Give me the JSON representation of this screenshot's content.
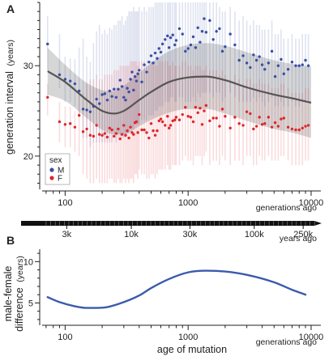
{
  "chart_data": [
    {
      "panel": "A",
      "type": "scatter",
      "ylabel": "generation interval",
      "ylabel_unit": "(years)",
      "xlabel": "",
      "x_note": "generations ago",
      "x_scale": "log",
      "xlim": [
        65,
        12000
      ],
      "ylim": [
        16.5,
        37
      ],
      "x_ticks": [
        100,
        1000,
        10000
      ],
      "x_tick_labels": [
        "100",
        "1000",
        "10000"
      ],
      "y_ticks": [
        20,
        30
      ],
      "y_tick_labels": [
        "20",
        "30"
      ],
      "grid": false,
      "legend": {
        "title": "sex",
        "position": "bottom-left",
        "entries": [
          {
            "label": "M",
            "color": "#3a4fa3"
          },
          {
            "label": "F",
            "color": "#e0262b"
          }
        ]
      },
      "series": [
        {
          "name": "M",
          "color": "#3a4fa3",
          "x": [
            72,
            90,
            100,
            110,
            120,
            130,
            140,
            150,
            160,
            170,
            180,
            190,
            200,
            210,
            220,
            230,
            240,
            250,
            260,
            270,
            280,
            290,
            300,
            310,
            320,
            330,
            340,
            350,
            360,
            370,
            380,
            390,
            400,
            420,
            440,
            460,
            480,
            500,
            520,
            540,
            560,
            580,
            600,
            620,
            650,
            680,
            700,
            720,
            750,
            780,
            800,
            850,
            900,
            950,
            1000,
            1050,
            1100,
            1150,
            1200,
            1250,
            1300,
            1350,
            1400,
            1500,
            1600,
            1700,
            1800,
            1900,
            2000,
            2200,
            2400,
            2600,
            2800,
            3000,
            3200,
            3400,
            3600,
            3800,
            4000,
            4200,
            4500,
            4800,
            5100,
            5400,
            5700,
            6000,
            6500,
            7000,
            7500,
            8000,
            8500,
            9000,
            9500
          ],
          "y": [
            32.4,
            29.0,
            28.5,
            28.3,
            28.0,
            27.2,
            25.2,
            25.1,
            24.9,
            25.5,
            26.3,
            25.8,
            26.8,
            26.9,
            26.2,
            27.2,
            26.6,
            27.4,
            26.5,
            27.4,
            28.4,
            27.7,
            26.5,
            26.2,
            27.5,
            27.1,
            28.5,
            29.3,
            27.3,
            28.8,
            28.3,
            29.1,
            29.5,
            28.2,
            30.1,
            29.3,
            30.4,
            31.1,
            30.3,
            31.4,
            30.8,
            31.9,
            31.5,
            32.4,
            32.9,
            33.3,
            32.0,
            33.1,
            33.4,
            32.3,
            32.8,
            34.1,
            33.5,
            31.6,
            31.9,
            32.3,
            33.2,
            32.0,
            34.2,
            32.6,
            33.8,
            35.2,
            33.7,
            35.0,
            32.9,
            33.8,
            34.1,
            31.6,
            32.1,
            33.5,
            32.3,
            30.6,
            31.1,
            30.3,
            29.8,
            31.2,
            30.6,
            31.0,
            30.1,
            29.6,
            30.3,
            31.6,
            28.8,
            30.0,
            30.7,
            29.1,
            29.6,
            30.4,
            30.0,
            30.0,
            30.1,
            30.6,
            30.0
          ],
          "upper": [
            35.5,
            33.5,
            31.0,
            30.8,
            30.7,
            32.0,
            33.0,
            31.0,
            30.4,
            32.5,
            33.8,
            34.5,
            33.5,
            34.0,
            33.5,
            34.2,
            34.0,
            34.5,
            34.5,
            35.0,
            35.0,
            35.5,
            34.5,
            35.0,
            35.5,
            36.0,
            36.0,
            36.0,
            36.5,
            36.0,
            36.0,
            36.0,
            36.5,
            36.0,
            36.5,
            36.0,
            36.5,
            36.5,
            36.5,
            37.0,
            37.0,
            37.0,
            37.0,
            37.0,
            37.0,
            37.0,
            37.0,
            37.0,
            37.0,
            37.0,
            37.0,
            37.0,
            37.0,
            37.0,
            37.0,
            37.0,
            37.0,
            37.0,
            37.0,
            37.0,
            37.0,
            37.0,
            37.0,
            37.0,
            37.0,
            37.0,
            36.5,
            36.0,
            36.0,
            36.5,
            36.0,
            35.0,
            35.5,
            35.0,
            34.5,
            35.0,
            34.5,
            34.5,
            34.0,
            34.0,
            34.0,
            35.0,
            33.5,
            33.5,
            34.0,
            33.0,
            33.0,
            33.5,
            33.0,
            33.0,
            33.5,
            33.5,
            33.5
          ],
          "lower": [
            29.5,
            27.5,
            26.0,
            26.0,
            25.5,
            24.5,
            22.0,
            22.0,
            21.0,
            21.5,
            21.5,
            21.5,
            21.5,
            21.5,
            21.5,
            21.5,
            21.5,
            22.0,
            21.5,
            22.0,
            22.0,
            22.0,
            22.0,
            22.0,
            22.5,
            22.5,
            23.0,
            23.0,
            23.0,
            23.5,
            23.5,
            23.5,
            23.5,
            24.0,
            24.0,
            24.0,
            24.5,
            24.5,
            24.5,
            25.0,
            25.0,
            25.5,
            25.5,
            25.5,
            26.0,
            26.0,
            26.0,
            26.5,
            26.5,
            26.0,
            26.0,
            26.5,
            26.5,
            26.0,
            26.0,
            26.0,
            26.5,
            26.0,
            27.0,
            26.5,
            27.0,
            27.0,
            27.0,
            27.0,
            26.5,
            27.0,
            27.0,
            26.0,
            26.5,
            27.0,
            26.5,
            26.0,
            26.0,
            26.0,
            26.0,
            26.5,
            26.0,
            26.5,
            26.0,
            25.5,
            26.0,
            26.5,
            25.5,
            25.5,
            26.0,
            25.5,
            25.5,
            26.0,
            25.5,
            25.5,
            26.0,
            26.0,
            26.0
          ]
        },
        {
          "name": "F",
          "color": "#e0262b",
          "x": [
            72,
            90,
            100,
            110,
            120,
            130,
            140,
            150,
            160,
            170,
            180,
            190,
            200,
            210,
            220,
            230,
            240,
            250,
            260,
            270,
            280,
            290,
            300,
            310,
            320,
            330,
            340,
            350,
            360,
            370,
            380,
            390,
            400,
            420,
            440,
            460,
            480,
            500,
            520,
            540,
            560,
            580,
            600,
            620,
            650,
            680,
            700,
            720,
            750,
            780,
            800,
            850,
            900,
            950,
            1000,
            1050,
            1100,
            1150,
            1200,
            1250,
            1300,
            1350,
            1400,
            1500,
            1600,
            1700,
            1800,
            1900,
            2000,
            2200,
            2400,
            2600,
            2800,
            3000,
            3200,
            3400,
            3600,
            3800,
            4000,
            4200,
            4500,
            4800,
            5100,
            5400,
            5700,
            6000,
            6500,
            7000,
            7500,
            8000,
            8500,
            9000,
            9500
          ],
          "y": [
            26.5,
            23.8,
            23.5,
            23.6,
            23.2,
            24.5,
            22.7,
            23.0,
            22.3,
            22.2,
            23.4,
            22.4,
            22.3,
            22.5,
            22.1,
            23.1,
            22.9,
            22.2,
            22.5,
            23.0,
            21.9,
            22.4,
            23.4,
            22.3,
            22.8,
            22.0,
            23.2,
            22.6,
            22.4,
            23.7,
            23.8,
            22.6,
            24.6,
            22.9,
            22.9,
            22.6,
            22.0,
            23.6,
            22.8,
            22.3,
            22.8,
            23.9,
            24.1,
            23.8,
            23.4,
            24.4,
            23.1,
            23.4,
            23.9,
            24.0,
            24.3,
            24.0,
            24.6,
            25.4,
            24.4,
            24.3,
            23.8,
            25.4,
            24.8,
            25.3,
            23.5,
            25.0,
            25.6,
            23.9,
            24.2,
            24.2,
            23.3,
            25.2,
            24.4,
            23.1,
            24.3,
            23.6,
            23.4,
            24.9,
            24.7,
            23.0,
            23.3,
            24.3,
            23.5,
            23.6,
            24.3,
            23.2,
            23.7,
            23.3,
            24.1,
            24.2,
            23.2,
            23.0,
            22.9,
            22.9,
            23.1,
            23.3,
            23.4
          ],
          "upper": [
            28.0,
            26.0,
            25.5,
            25.5,
            25.0,
            27.0,
            27.0,
            28.0,
            28.5,
            28.5,
            29.0,
            28.5,
            28.5,
            29.0,
            29.0,
            29.0,
            29.0,
            29.5,
            29.5,
            29.5,
            30.0,
            30.0,
            30.0,
            30.0,
            30.0,
            30.0,
            30.5,
            30.5,
            30.5,
            30.5,
            30.5,
            30.0,
            30.5,
            30.5,
            30.5,
            30.0,
            30.0,
            30.5,
            30.5,
            30.0,
            30.0,
            30.5,
            30.5,
            30.5,
            30.5,
            30.5,
            30.0,
            30.0,
            30.5,
            30.0,
            30.0,
            30.0,
            30.5,
            30.5,
            30.0,
            30.0,
            29.5,
            30.0,
            30.0,
            30.0,
            29.5,
            29.5,
            30.0,
            29.5,
            29.5,
            29.5,
            29.0,
            29.5,
            29.0,
            28.5,
            29.0,
            28.5,
            28.0,
            28.5,
            28.5,
            28.0,
            28.0,
            28.5,
            28.0,
            28.0,
            28.0,
            27.5,
            27.5,
            27.5,
            28.0,
            28.0,
            27.5,
            27.0,
            27.0,
            27.0,
            27.0,
            27.5,
            27.5
          ],
          "lower": [
            24.5,
            21.5,
            21.0,
            21.0,
            20.5,
            20.0,
            18.0,
            17.5,
            17.0,
            17.0,
            17.5,
            17.0,
            17.0,
            17.0,
            17.0,
            17.5,
            17.5,
            17.0,
            17.0,
            17.5,
            17.0,
            17.0,
            17.5,
            17.0,
            17.5,
            17.0,
            17.5,
            17.5,
            17.0,
            18.0,
            18.0,
            17.5,
            18.5,
            18.0,
            18.0,
            17.5,
            17.5,
            18.0,
            18.0,
            17.5,
            18.0,
            18.5,
            18.5,
            18.5,
            18.5,
            19.0,
            18.5,
            18.5,
            19.0,
            19.0,
            19.0,
            19.0,
            19.5,
            20.0,
            19.5,
            19.5,
            19.0,
            20.0,
            20.0,
            20.0,
            19.0,
            20.0,
            20.5,
            19.0,
            19.5,
            19.5,
            19.0,
            20.0,
            19.5,
            19.0,
            19.5,
            19.5,
            19.0,
            20.0,
            20.0,
            19.0,
            19.0,
            20.0,
            19.5,
            19.5,
            20.0,
            19.5,
            19.5,
            19.5,
            20.0,
            20.0,
            19.5,
            19.0,
            19.0,
            19.0,
            19.0,
            19.5,
            19.5
          ]
        },
        {
          "name": "",
          "kind": "smooth-fit",
          "color": "#555555",
          "x": [
            72,
            100,
            150,
            200,
            250,
            300,
            400,
            500,
            700,
            1000,
            1400,
            2000,
            3000,
            5000,
            7000,
            10000
          ],
          "y": [
            29.4,
            28.2,
            26.2,
            25.0,
            24.7,
            25.0,
            26.2,
            27.1,
            28.2,
            28.7,
            28.8,
            28.4,
            27.6,
            26.8,
            26.4,
            25.9
          ],
          "band_upper": [
            32.0,
            30.1,
            28.1,
            27.3,
            27.2,
            27.8,
            29.2,
            30.3,
            31.6,
            32.3,
            32.5,
            32.2,
            31.5,
            30.6,
            30.2,
            29.9
          ],
          "band_lower": [
            26.8,
            26.1,
            24.2,
            22.9,
            22.4,
            22.4,
            23.3,
            24.0,
            24.8,
            25.2,
            25.2,
            24.7,
            23.9,
            23.0,
            22.6,
            22.0
          ],
          "band_color": "#c8c8c8"
        }
      ]
    },
    {
      "panel": "years-axis",
      "type": "axis",
      "unit_label": "years ago",
      "ticks": [
        {
          "label": "3k",
          "gen": 103
        },
        {
          "label": "10k",
          "gen": 345
        },
        {
          "label": "30k",
          "gen": 1034
        },
        {
          "label": "100k",
          "gen": 3448
        },
        {
          "label": "250k",
          "gen": 8620
        }
      ]
    },
    {
      "panel": "B",
      "type": "line",
      "ylabel": "male-female difference",
      "ylabel_line1": "male-female",
      "ylabel_line2": "difference",
      "ylabel_unit": "(years)",
      "xlabel": "age of mutation",
      "x_note": "generations ago",
      "x_scale": "log",
      "xlim": [
        65,
        12000
      ],
      "ylim": [
        2.5,
        11.5
      ],
      "x_ticks": [
        100,
        1000,
        10000
      ],
      "x_tick_labels": [
        "100",
        "1000",
        "10000"
      ],
      "y_ticks": [
        5,
        10
      ],
      "y_tick_labels": [
        "5",
        "10"
      ],
      "grid": false,
      "series": [
        {
          "name": "",
          "color": "#3a5bab",
          "x": [
            72,
            90,
            120,
            150,
            180,
            220,
            300,
            400,
            500,
            700,
            1000,
            1400,
            2000,
            3000,
            5000,
            7000,
            9000
          ],
          "y": [
            5.7,
            5.1,
            4.6,
            4.4,
            4.4,
            4.5,
            5.1,
            5.9,
            6.8,
            7.9,
            8.7,
            8.9,
            8.8,
            8.4,
            7.5,
            6.6,
            6.0
          ]
        }
      ]
    }
  ]
}
